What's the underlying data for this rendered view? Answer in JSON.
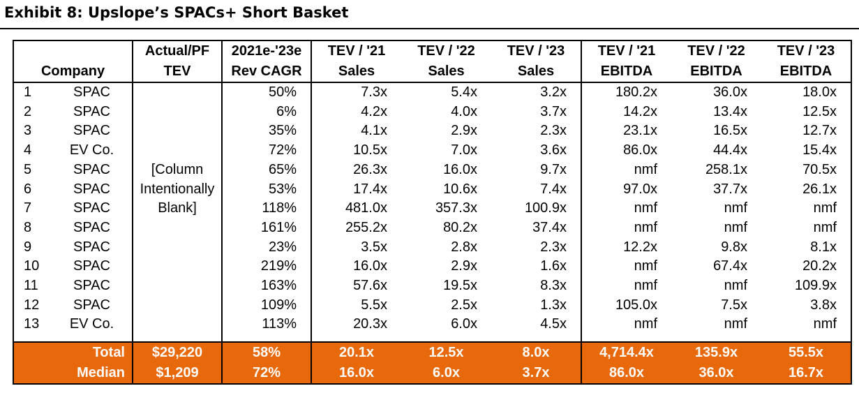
{
  "title": "Exhibit 8: Upslope’s SPACs+ Short Basket",
  "headers": {
    "company": "Company",
    "tev_line1": "Actual/PF",
    "tev_line2": "TEV",
    "cagr_line1": "2021e-'23e",
    "cagr_line2": "Rev CAGR",
    "s21_line1": "TEV / '21",
    "s21_line2": "Sales",
    "s22_line1": "TEV / '22",
    "s22_line2": "Sales",
    "s23_line1": "TEV / '23",
    "s23_line2": "Sales",
    "e21_line1": "TEV / '21",
    "e21_line2": "EBITDA",
    "e22_line1": "TEV / '22",
    "e22_line2": "EBITDA",
    "e23_line1": "TEV / '23",
    "e23_line2": "EBITDA"
  },
  "blank_note": "[Column Intentionally Blank]",
  "rows": [
    {
      "num": "1",
      "company": "SPAC",
      "cagr": "50%",
      "s21": "7.3x",
      "s22": "5.4x",
      "s23": "3.2x",
      "e21": "180.2x",
      "e22": "36.0x",
      "e23": "18.0x"
    },
    {
      "num": "2",
      "company": "SPAC",
      "cagr": "6%",
      "s21": "4.2x",
      "s22": "4.0x",
      "s23": "3.7x",
      "e21": "14.2x",
      "e22": "13.4x",
      "e23": "12.5x"
    },
    {
      "num": "3",
      "company": "SPAC",
      "cagr": "35%",
      "s21": "4.1x",
      "s22": "2.9x",
      "s23": "2.3x",
      "e21": "23.1x",
      "e22": "16.5x",
      "e23": "12.7x"
    },
    {
      "num": "4",
      "company": "EV Co.",
      "cagr": "72%",
      "s21": "10.5x",
      "s22": "7.0x",
      "s23": "3.6x",
      "e21": "86.0x",
      "e22": "44.4x",
      "e23": "15.4x"
    },
    {
      "num": "5",
      "company": "SPAC",
      "cagr": "65%",
      "s21": "26.3x",
      "s22": "16.0x",
      "s23": "9.7x",
      "e21": "nmf",
      "e22": "258.1x",
      "e23": "70.5x"
    },
    {
      "num": "6",
      "company": "SPAC",
      "cagr": "53%",
      "s21": "17.4x",
      "s22": "10.6x",
      "s23": "7.4x",
      "e21": "97.0x",
      "e22": "37.7x",
      "e23": "26.1x"
    },
    {
      "num": "7",
      "company": "SPAC",
      "cagr": "118%",
      "s21": "481.0x",
      "s22": "357.3x",
      "s23": "100.9x",
      "e21": "nmf",
      "e22": "nmf",
      "e23": "nmf"
    },
    {
      "num": "8",
      "company": "SPAC",
      "cagr": "161%",
      "s21": "255.2x",
      "s22": "80.2x",
      "s23": "37.4x",
      "e21": "nmf",
      "e22": "nmf",
      "e23": "nmf"
    },
    {
      "num": "9",
      "company": "SPAC",
      "cagr": "23%",
      "s21": "3.5x",
      "s22": "2.8x",
      "s23": "2.3x",
      "e21": "12.2x",
      "e22": "9.8x",
      "e23": "8.1x"
    },
    {
      "num": "10",
      "company": "SPAC",
      "cagr": "219%",
      "s21": "16.0x",
      "s22": "2.9x",
      "s23": "1.6x",
      "e21": "nmf",
      "e22": "67.4x",
      "e23": "20.2x"
    },
    {
      "num": "11",
      "company": "SPAC",
      "cagr": "163%",
      "s21": "57.6x",
      "s22": "19.5x",
      "s23": "8.3x",
      "e21": "nmf",
      "e22": "nmf",
      "e23": "109.9x"
    },
    {
      "num": "12",
      "company": "SPAC",
      "cagr": "109%",
      "s21": "5.5x",
      "s22": "2.5x",
      "s23": "1.3x",
      "e21": "105.0x",
      "e22": "7.5x",
      "e23": "3.8x"
    },
    {
      "num": "13",
      "company": "EV Co.",
      "cagr": "113%",
      "s21": "20.3x",
      "s22": "6.0x",
      "s23": "4.5x",
      "e21": "nmf",
      "e22": "nmf",
      "e23": "nmf"
    }
  ],
  "summary": [
    {
      "label": "Total",
      "tev": "$29,220",
      "cagr": "58%",
      "s21": "20.1x",
      "s22": "12.5x",
      "s23": "8.0x",
      "e21": "4,714.4x",
      "e22": "135.9x",
      "e23": "55.5x"
    },
    {
      "label": "Median",
      "tev": "$1,209",
      "cagr": "72%",
      "s21": "16.0x",
      "s22": "6.0x",
      "s23": "3.7x",
      "e21": "86.0x",
      "e22": "36.0x",
      "e23": "16.7x"
    }
  ],
  "colors": {
    "summary_bg": "#e8690c",
    "summary_text": "#ffffff"
  }
}
